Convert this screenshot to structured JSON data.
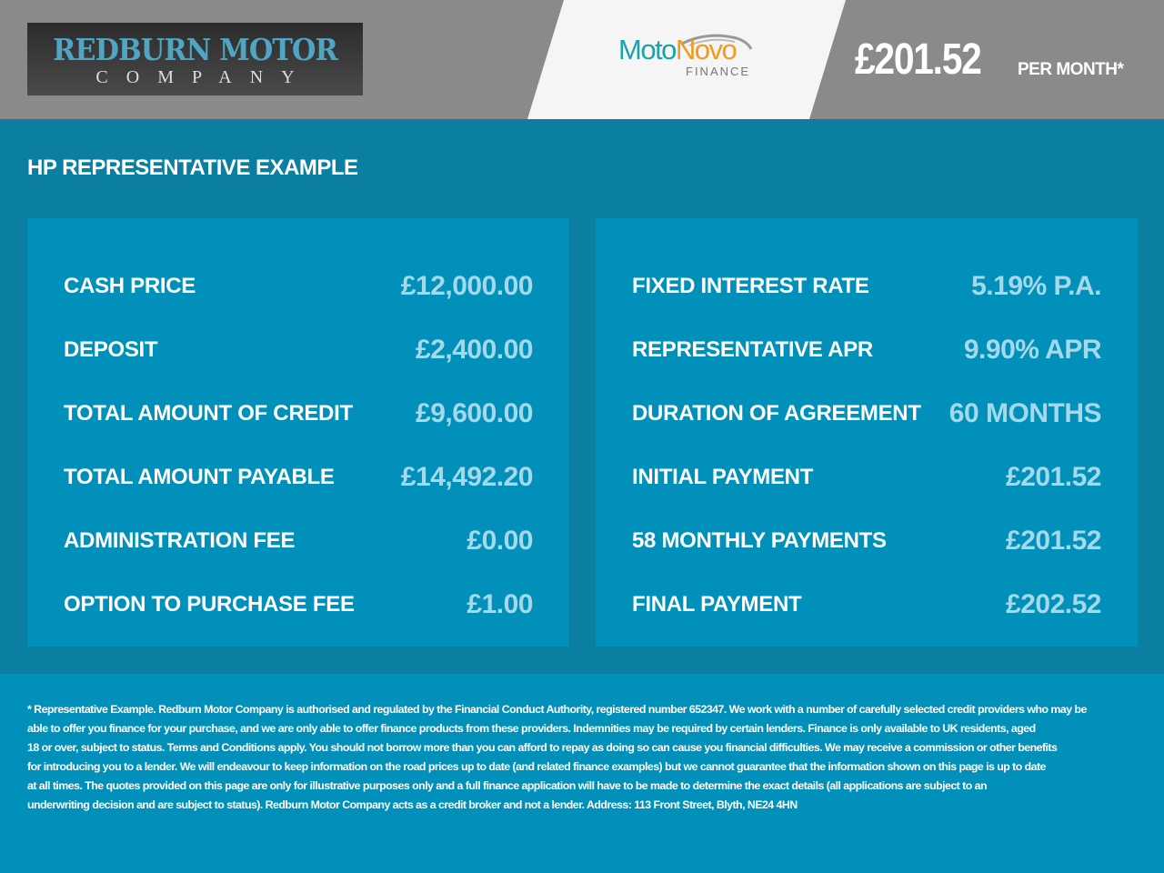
{
  "header": {
    "dealer_logo": {
      "line1": "REDBURN MOTOR",
      "line2": "COMPANY",
      "color": "#4ea6c4"
    },
    "lender_logo": {
      "part1": "Moto",
      "part2": "Novo",
      "sub": "FINANCE",
      "colors": [
        "#1aa3a8",
        "#f29a1d"
      ]
    },
    "monthly_price": "£201.52",
    "per_month": "PER MONTH*"
  },
  "title": "HP REPRESENTATIVE EXAMPLE",
  "left_panel": [
    {
      "label": "CASH PRICE",
      "value": "£12,000.00"
    },
    {
      "label": "DEPOSIT",
      "value": "£2,400.00"
    },
    {
      "label": "TOTAL AMOUNT OF CREDIT",
      "value": "£9,600.00"
    },
    {
      "label": "TOTAL AMOUNT PAYABLE",
      "value": "£14,492.20"
    },
    {
      "label": "ADMINISTRATION FEE",
      "value": "£0.00"
    },
    {
      "label": "OPTION TO PURCHASE FEE",
      "value": "£1.00"
    }
  ],
  "right_panel": [
    {
      "label": "FIXED INTEREST RATE",
      "value": "5.19% P.A."
    },
    {
      "label": "REPRESENTATIVE APR",
      "value": "9.90% APR"
    },
    {
      "label": "DURATION OF AGREEMENT",
      "value": "60 MONTHS"
    },
    {
      "label": "INITIAL PAYMENT",
      "value": "£201.52"
    },
    {
      "label": "58 MONTHLY PAYMENTS",
      "value": "£201.52"
    },
    {
      "label": "FINAL PAYMENT",
      "value": "£202.52"
    }
  ],
  "disclaimer": [
    "* Representative Example. Redburn Motor Company is authorised and regulated by the Financial Conduct Authority, registered number 652347. We work with a number of carefully selected credit providers who may be",
    "able to offer you finance for your purchase, and we are only able to offer finance products from these providers. Indemnities may be required by certain lenders. Finance is only available to UK residents, aged",
    "18 or over, subject to status. Terms and Conditions apply. You should not borrow more than you can afford to repay as doing so can cause you financial difficulties. We may receive a commission or other benefits",
    "for introducing you to a lender. We will endeavour to keep information on the road prices up to date (and related finance examples) but we cannot guarantee that the information shown on this page is up to date",
    "at all times. The quotes provided on this page are only for illustrative purposes only and a full finance application will have to be made to determine the exact details (all applications are subject to an",
    "underwriting decision and are subject to status). Redburn Motor Company acts as a credit broker and not a lender. Address: 113 Front Street, Blyth, NE24 4HN"
  ]
}
